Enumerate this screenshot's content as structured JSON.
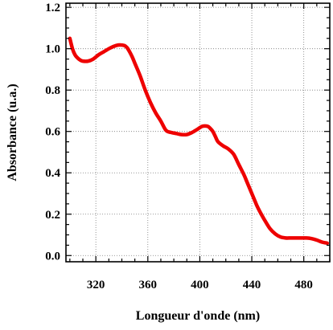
{
  "chart_data": {
    "type": "line",
    "xlabel": "Longueur d'onde (nm)",
    "ylabel": "Absorbance (u.a.)",
    "xlim": [
      297,
      500
    ],
    "ylim": [
      -0.03,
      1.22
    ],
    "x_ticks": [
      320,
      360,
      400,
      440,
      480
    ],
    "x_tick_labels": [
      "320",
      "360",
      "400",
      "440",
      "480"
    ],
    "x_minor_step": 10,
    "y_ticks": [
      0.0,
      0.2,
      0.4,
      0.6,
      0.8,
      1.0,
      1.2
    ],
    "y_tick_labels": [
      "0.0",
      "0.2",
      "0.4",
      "0.6",
      "0.8",
      "1.0",
      "1.2"
    ],
    "y_minor_step": 0.05,
    "grid": true,
    "series": [
      {
        "color": "#ee0000",
        "x": [
          300,
          302,
          304,
          306,
          308,
          310,
          314,
          318,
          322,
          326,
          330,
          334,
          338,
          342,
          344,
          346,
          348,
          350,
          354,
          358,
          362,
          366,
          370,
          374,
          378,
          382,
          386,
          390,
          394,
          398,
          402,
          406,
          408,
          410,
          412,
          414,
          418,
          422,
          426,
          430,
          434,
          436,
          438,
          440,
          442,
          444,
          446,
          450,
          454,
          458,
          462,
          466,
          470,
          474,
          478,
          482,
          486,
          490,
          494,
          498
        ],
        "y": [
          1.05,
          1.0,
          0.97,
          0.955,
          0.945,
          0.94,
          0.94,
          0.95,
          0.97,
          0.985,
          1.0,
          1.012,
          1.018,
          1.015,
          1.005,
          0.985,
          0.96,
          0.93,
          0.87,
          0.8,
          0.74,
          0.69,
          0.65,
          0.605,
          0.595,
          0.59,
          0.585,
          0.585,
          0.595,
          0.61,
          0.625,
          0.625,
          0.615,
          0.6,
          0.575,
          0.55,
          0.53,
          0.515,
          0.49,
          0.44,
          0.39,
          0.36,
          0.33,
          0.3,
          0.27,
          0.24,
          0.215,
          0.17,
          0.13,
          0.105,
          0.09,
          0.085,
          0.085,
          0.085,
          0.085,
          0.085,
          0.082,
          0.075,
          0.065,
          0.06
        ]
      }
    ]
  }
}
